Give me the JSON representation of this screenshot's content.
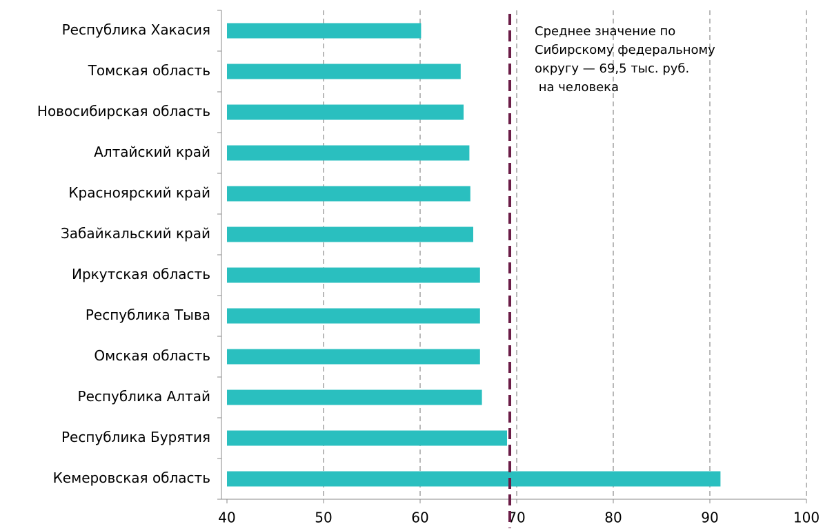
{
  "chart_data": {
    "type": "barh",
    "categories": [
      "Республика Хакасия",
      "Томская область",
      "Новосибирская область",
      "Алтайский край",
      "Красноярский край",
      "Забайкальский край",
      "Иркутская область",
      "Республика Тыва",
      "Омская область",
      "Республика Алтай",
      "Республика Бурятия",
      "Кемеровская область"
    ],
    "values": [
      60.1,
      64.2,
      64.5,
      65.1,
      65.2,
      65.5,
      66.2,
      66.2,
      66.2,
      66.4,
      69.0,
      91.1
    ],
    "color": "#2abfbf",
    "xlim": [
      40,
      100
    ],
    "xticks": [
      40,
      50,
      60,
      70,
      80,
      90,
      100
    ],
    "grid": true,
    "reference_line": {
      "value": 69.5,
      "color": "#6b1d47",
      "label": [
        "Среднее значение по",
        "Сибирскому федеральному",
        "округу — 69,5 тыс. руб.",
        " на человека"
      ]
    }
  }
}
